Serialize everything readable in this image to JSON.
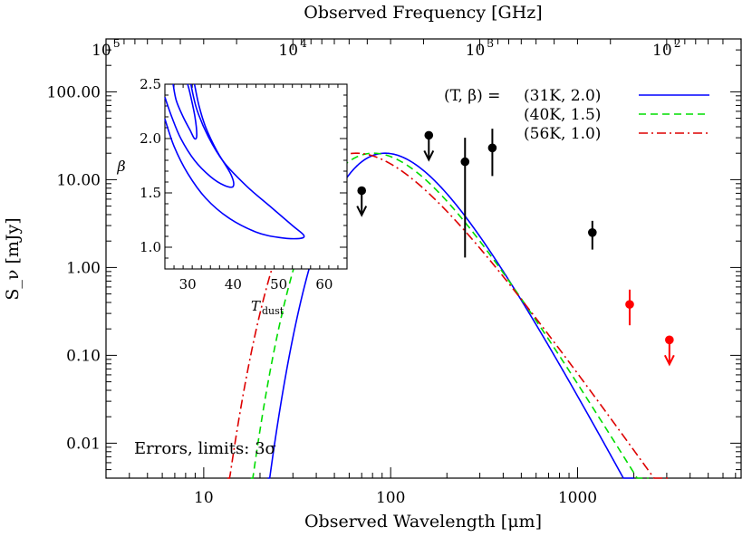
{
  "chart_data": {
    "type": "scatter",
    "xlabel": "Observed Wavelength [μm]",
    "ylabel": "S_ν [mJy]",
    "top_xlabel": "Observed Frequency [GHz]",
    "xscale": "log",
    "yscale": "log",
    "xlim": [
      3,
      7500
    ],
    "ylim": [
      0.004,
      400
    ],
    "x_ticks": [
      10,
      100,
      1000
    ],
    "x_tick_labels": [
      "10",
      "100",
      "1000"
    ],
    "y_ticks": [
      0.01,
      0.1,
      1,
      10,
      100
    ],
    "y_tick_labels": [
      "0.01",
      "0.10",
      "1.00",
      "10.00",
      "100.00"
    ],
    "top_ticks_ghz": [
      100000,
      10000,
      1000,
      100
    ],
    "top_tick_bases": [
      "10",
      "10",
      "10",
      "10"
    ],
    "top_tick_exponents": [
      "5",
      "4",
      "3",
      "2"
    ],
    "annotation": "Errors, limits: 3σ",
    "legend": {
      "header": "(T, β) =",
      "placement": "top-right",
      "entries": [
        {
          "label": "(31K, 2.0)",
          "color": "#0000ff",
          "dash": "solid",
          "T": 31,
          "beta": 2.0
        },
        {
          "label": "(40K, 1.5)",
          "color": "#00dd00",
          "dash": "dashed",
          "T": 40,
          "beta": 1.5
        },
        {
          "label": "(56K, 1.0)",
          "color": "#dd0000",
          "dash": "dashdot",
          "T": 56,
          "beta": 1.0
        }
      ]
    },
    "series": [
      {
        "kind": "points",
        "color": "#000000",
        "points": [
          {
            "x": 70,
            "y": 7.5,
            "upper_limit": true
          },
          {
            "x": 160,
            "y": 32,
            "upper_limit": true
          },
          {
            "x": 250,
            "y": 16,
            "err_low": 1.3,
            "err_high": 30
          },
          {
            "x": 350,
            "y": 23,
            "err_low": 11,
            "err_high": 38
          },
          {
            "x": 1200,
            "y": 2.5,
            "err_low": 1.6,
            "err_high": 3.4
          }
        ]
      },
      {
        "kind": "points",
        "color": "#ff0000",
        "points": [
          {
            "x": 1900,
            "y": 0.38,
            "err_low": 0.22,
            "err_high": 0.56
          },
          {
            "x": 3100,
            "y": 0.15,
            "upper_limit": true
          }
        ]
      }
    ],
    "inset": {
      "xlabel_main": "T",
      "xlabel_sub": "dust",
      "ylabel": "β",
      "xlim": [
        25,
        65
      ],
      "ylim": [
        0.8,
        2.5
      ],
      "x_ticks": [
        30,
        40,
        50,
        60
      ],
      "x_tick_labels": [
        "30",
        "40",
        "50",
        "60"
      ],
      "y_ticks": [
        1.0,
        1.5,
        2.0,
        2.5
      ],
      "y_tick_labels": [
        "1.0",
        "1.5",
        "2.0",
        "2.5"
      ],
      "contour_color": "#0000ff",
      "contours": [
        [
          [
            26.8,
            2.5
          ],
          [
            27.5,
            2.35
          ],
          [
            29,
            2.2
          ],
          [
            30.5,
            2.08
          ],
          [
            31.5,
            2.0
          ],
          [
            32,
            2.03
          ],
          [
            31.6,
            2.2
          ],
          [
            30.5,
            2.42
          ],
          [
            30,
            2.5
          ]
        ],
        [
          [
            25,
            2.38
          ],
          [
            26.5,
            2.2
          ],
          [
            28.5,
            2.0
          ],
          [
            31.5,
            1.8
          ],
          [
            35,
            1.65
          ],
          [
            38,
            1.57
          ],
          [
            40,
            1.56
          ],
          [
            39.5,
            1.67
          ],
          [
            36.5,
            1.88
          ],
          [
            34,
            2.1
          ],
          [
            32.5,
            2.3
          ],
          [
            31.5,
            2.5
          ]
        ],
        [
          [
            25,
            2.18
          ],
          [
            27,
            1.93
          ],
          [
            30,
            1.68
          ],
          [
            34,
            1.45
          ],
          [
            39,
            1.27
          ],
          [
            45,
            1.14
          ],
          [
            50,
            1.09
          ],
          [
            54.5,
            1.08
          ],
          [
            55.5,
            1.11
          ],
          [
            53,
            1.2
          ],
          [
            48,
            1.38
          ],
          [
            43,
            1.56
          ],
          [
            38,
            1.78
          ],
          [
            34.5,
            2.02
          ],
          [
            32,
            2.27
          ],
          [
            30.7,
            2.5
          ]
        ]
      ]
    }
  }
}
